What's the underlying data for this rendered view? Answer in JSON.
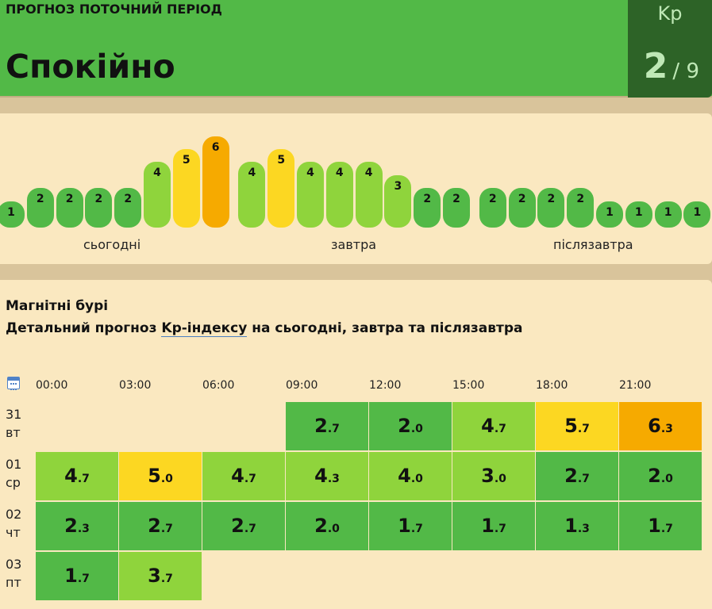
{
  "header": {
    "label": "ПРОГНОЗ ПОТОЧНИЙ ПЕРІОД",
    "status": "Спокійно",
    "kp_label": "Kp",
    "kp_value": "2",
    "kp_max": "/ 9"
  },
  "colors": {
    "level_1_2": "#52b947",
    "level_3_4": "#8fd43c",
    "level_5": "#fcd722",
    "level_6": "#f6aa00",
    "header_dark": "#2d6327",
    "card_background": "#fae8c0"
  },
  "bars": {
    "values": [
      "1",
      "2",
      "2",
      "2",
      "2",
      "4",
      "5",
      "6",
      "4",
      "5",
      "4",
      "4",
      "4",
      "3",
      "2",
      "2",
      "2",
      "2",
      "2",
      "2",
      "1",
      "1",
      "1",
      "1"
    ],
    "day_labels": [
      "сьогодні",
      "завтра",
      "післязавтра"
    ]
  },
  "storms": {
    "title": "Магнітні бурі",
    "subtitle_before": "Детальний прогноз ",
    "subtitle_link": "Kp-індексу",
    "subtitle_after": " на сьогодні, завтра та післязавтра",
    "calendar_icon": "calendar-icon",
    "hours": [
      "00:00",
      "03:00",
      "06:00",
      "09:00",
      "12:00",
      "15:00",
      "18:00",
      "21:00"
    ],
    "rows": [
      {
        "date": "31",
        "weekday": "вт",
        "values": [
          "",
          "",
          "",
          "2.7",
          "2.0",
          "4.7",
          "5.7",
          "6.3"
        ]
      },
      {
        "date": "01",
        "weekday": "ср",
        "values": [
          "4.7",
          "5.0",
          "4.7",
          "4.3",
          "4.0",
          "3.0",
          "2.7",
          "2.0"
        ]
      },
      {
        "date": "02",
        "weekday": "чт",
        "values": [
          "2.3",
          "2.7",
          "2.7",
          "2.0",
          "1.7",
          "1.7",
          "1.3",
          "1.7"
        ]
      },
      {
        "date": "03",
        "weekday": "пт",
        "values": [
          "1.7",
          "3.7",
          "",
          "",
          "",
          "",
          "",
          ""
        ]
      }
    ]
  }
}
